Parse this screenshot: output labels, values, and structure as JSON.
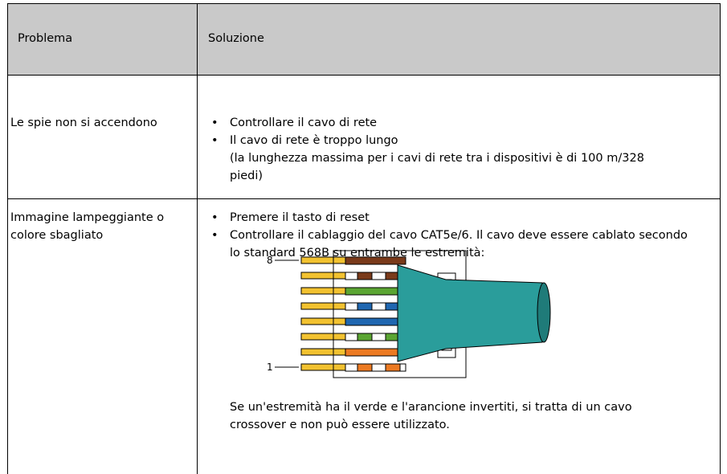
{
  "header": {
    "col1": "Problema",
    "col2": "Soluzione"
  },
  "rows": [
    {
      "problem": "Le spie non si accendono",
      "solutions": [
        "Controllare il cavo di rete",
        "Il cavo di rete è troppo lungo"
      ],
      "note": "(la lunghezza massima per i cavi di rete tra i dispositivi è di 100 m/328 piedi)"
    },
    {
      "problem": "Immagine lampeggiante o colore sbagliato",
      "solutions": [
        "Premere il tasto di reset",
        "Controllare il cablaggio del cavo CAT5e/6. Il cavo deve essere cablato secondo lo standard 568B su entrambe le estremità:"
      ],
      "diagram": {
        "top_label": "8",
        "bottom_label": "1"
      },
      "note": "Se un'estremità ha il verde e l'arancione invertiti, si tratta di un cavo crossover e non può essere utilizzato."
    }
  ]
}
